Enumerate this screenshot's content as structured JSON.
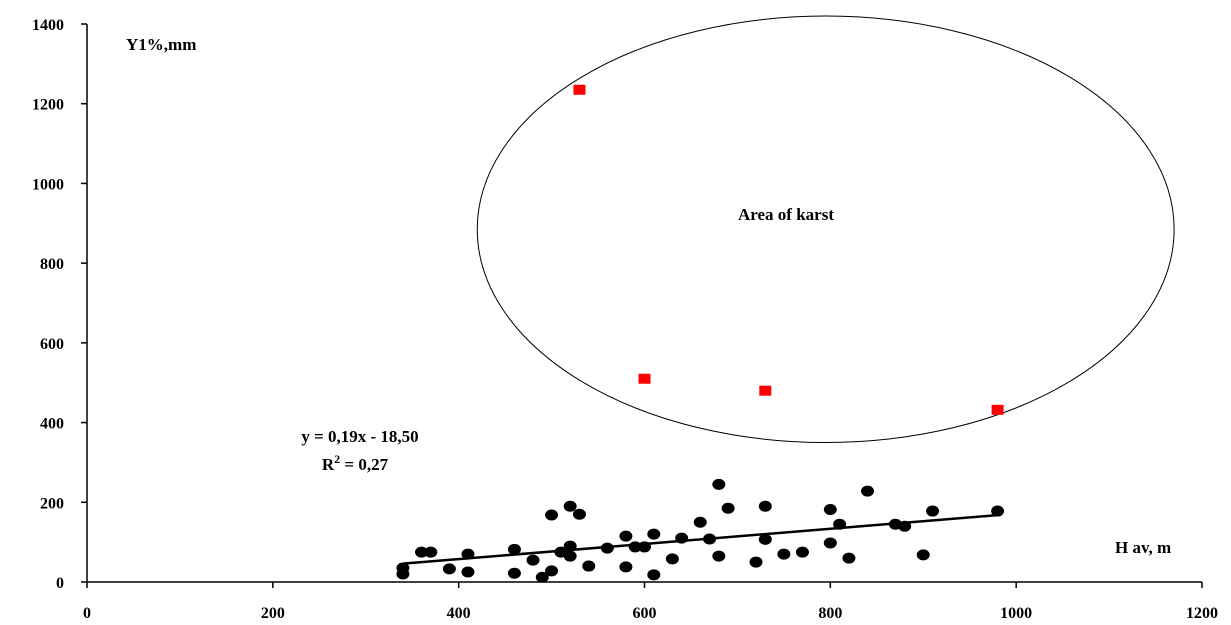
{
  "chart_data": {
    "type": "scatter",
    "title": "",
    "xlabel": "H av, m",
    "ylabel": "Y1%,mm",
    "xlim": [
      0,
      1200
    ],
    "ylim": [
      0,
      1400
    ],
    "x_ticks": [
      0,
      200,
      400,
      600,
      800,
      1000,
      1200
    ],
    "y_ticks": [
      0,
      200,
      400,
      600,
      800,
      1000,
      1200,
      1400
    ],
    "grid": false,
    "legend": "none",
    "series": [
      {
        "marker": "circle",
        "color": "#000000",
        "points": [
          [
            340,
            20
          ],
          [
            340,
            35
          ],
          [
            360,
            75
          ],
          [
            370,
            75
          ],
          [
            390,
            33
          ],
          [
            410,
            70
          ],
          [
            410,
            25
          ],
          [
            460,
            82
          ],
          [
            460,
            22
          ],
          [
            480,
            55
          ],
          [
            490,
            12
          ],
          [
            500,
            168
          ],
          [
            500,
            28
          ],
          [
            510,
            75
          ],
          [
            520,
            190
          ],
          [
            520,
            90
          ],
          [
            520,
            65
          ],
          [
            530,
            170
          ],
          [
            540,
            40
          ],
          [
            560,
            85
          ],
          [
            580,
            115
          ],
          [
            580,
            38
          ],
          [
            590,
            88
          ],
          [
            600,
            88
          ],
          [
            610,
            120
          ],
          [
            610,
            18
          ],
          [
            630,
            58
          ],
          [
            640,
            110
          ],
          [
            660,
            150
          ],
          [
            670,
            108
          ],
          [
            680,
            245
          ],
          [
            680,
            65
          ],
          [
            690,
            185
          ],
          [
            720,
            50
          ],
          [
            730,
            190
          ],
          [
            730,
            107
          ],
          [
            750,
            70
          ],
          [
            770,
            75
          ],
          [
            800,
            182
          ],
          [
            800,
            98
          ],
          [
            810,
            145
          ],
          [
            820,
            60
          ],
          [
            840,
            228
          ],
          [
            870,
            145
          ],
          [
            880,
            140
          ],
          [
            900,
            68
          ],
          [
            910,
            178
          ],
          [
            980,
            178
          ]
        ]
      },
      {
        "marker": "square",
        "color": "#ff0000",
        "points": [
          [
            530,
            1235
          ],
          [
            600,
            510
          ],
          [
            730,
            480
          ],
          [
            980,
            432
          ]
        ]
      }
    ],
    "trendline": {
      "x_range": [
        340,
        980
      ],
      "slope": 0.19,
      "intercept": -18.5,
      "equation": "y = 0,19x - 18,50",
      "r2_prefix": "R",
      "r2_exponent": "2",
      "r2_value": " = 0,27"
    },
    "annotation": {
      "text": "Area of karst",
      "ellipse_center": [
        795,
        885
      ],
      "ellipse_radius": [
        375,
        535
      ]
    }
  }
}
